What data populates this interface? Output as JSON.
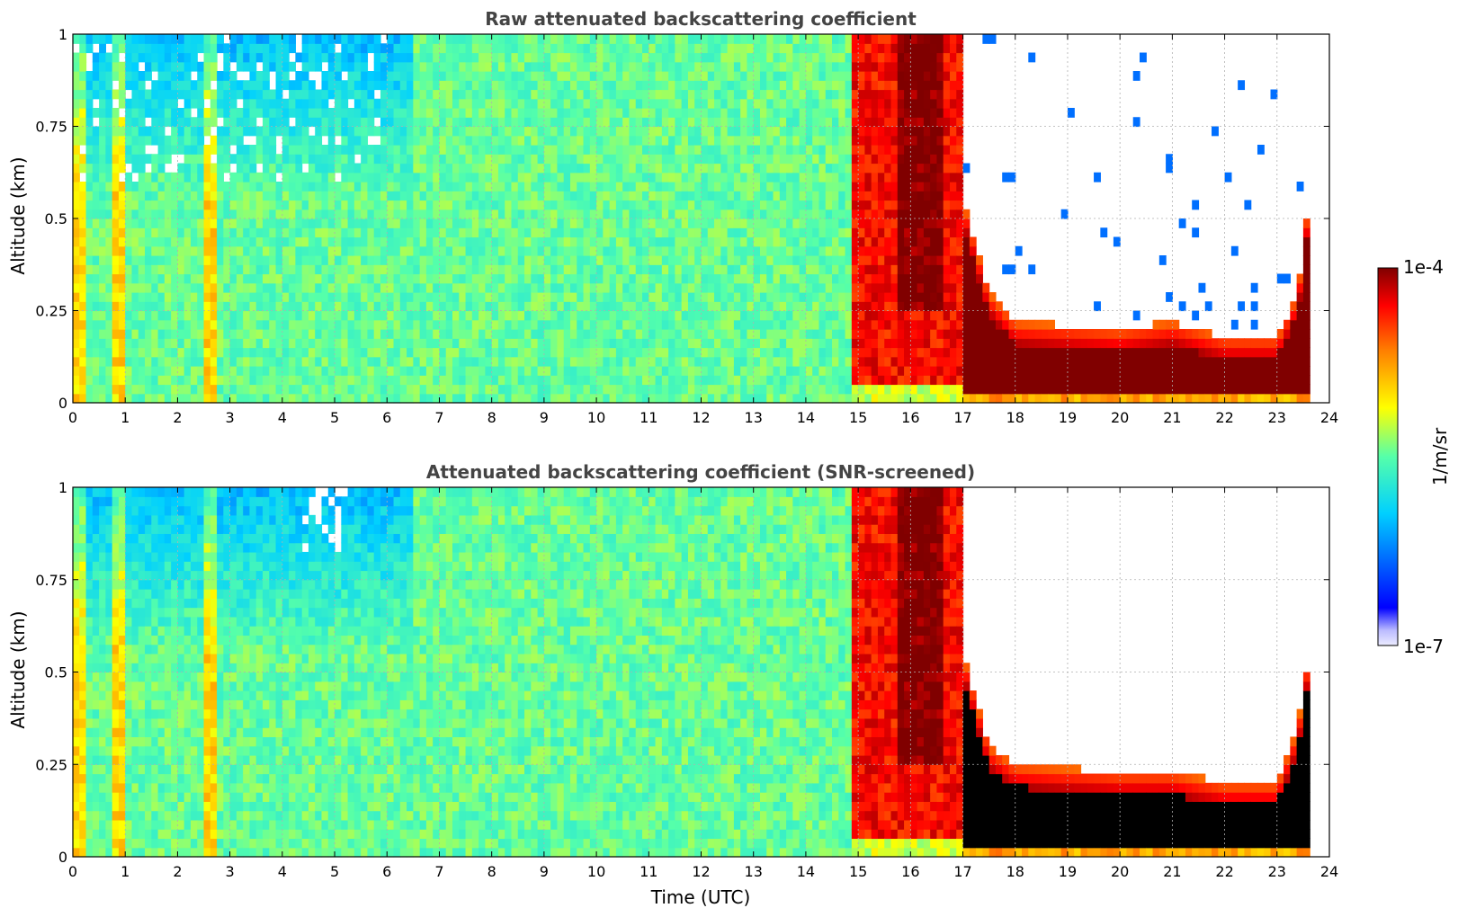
{
  "chart_data": [
    {
      "type": "heatmap",
      "title": "Raw attenuated backscattering coefficient",
      "xlabel": "",
      "ylabel": "Altitude (km)",
      "xlim": [
        0,
        24
      ],
      "ylim": [
        0,
        1
      ],
      "xticks": [
        "0",
        "1",
        "2",
        "3",
        "4",
        "5",
        "6",
        "7",
        "8",
        "9",
        "10",
        "11",
        "12",
        "13",
        "14",
        "15",
        "16",
        "17",
        "18",
        "19",
        "20",
        "21",
        "22",
        "23",
        "24"
      ],
      "yticks": [
        "0",
        "0.25",
        "0.5",
        "0.75",
        "1"
      ],
      "grid": true,
      "screened": false,
      "features": {
        "clear_background_log10": -5.8,
        "fog_start_utc": 14.85,
        "fog_end_utc": 17.0,
        "fog_log10": -4.3,
        "low_cloud_start_utc": 17.0,
        "low_cloud_end_utc": 23.6,
        "low_cloud_top_km": [
          [
            17.0,
            0.55
          ],
          [
            17.5,
            0.3
          ],
          [
            18,
            0.22
          ],
          [
            20,
            0.2
          ],
          [
            21,
            0.22
          ],
          [
            22,
            0.18
          ],
          [
            23,
            0.18
          ],
          [
            23.4,
            0.3
          ],
          [
            23.6,
            0.55
          ]
        ],
        "low_cloud_core_log10": -4.0,
        "no_data_after_utc": 23.65
      }
    },
    {
      "type": "heatmap",
      "title": "Attenuated backscattering coefficient (SNR-screened)",
      "xlabel": "Time (UTC)",
      "ylabel": "Altitude (km)",
      "xlim": [
        0,
        24
      ],
      "ylim": [
        0,
        1
      ],
      "xticks": [
        "0",
        "1",
        "2",
        "3",
        "4",
        "5",
        "6",
        "7",
        "8",
        "9",
        "10",
        "11",
        "12",
        "13",
        "14",
        "15",
        "16",
        "17",
        "18",
        "19",
        "20",
        "21",
        "22",
        "23",
        "24"
      ],
      "yticks": [
        "0",
        "0.25",
        "0.5",
        "0.75",
        "1"
      ],
      "grid": true,
      "screened": true,
      "features": {
        "clear_background_log10": -5.8,
        "fog_start_utc": 14.85,
        "fog_end_utc": 17.0,
        "fog_log10": -4.3,
        "low_cloud_start_utc": 17.0,
        "low_cloud_end_utc": 23.6,
        "low_cloud_top_km": [
          [
            17.0,
            0.55
          ],
          [
            17.5,
            0.3
          ],
          [
            18,
            0.25
          ],
          [
            20,
            0.23
          ],
          [
            21,
            0.23
          ],
          [
            22,
            0.2
          ],
          [
            23,
            0.2
          ],
          [
            23.4,
            0.35
          ],
          [
            23.6,
            0.55
          ]
        ],
        "saturated_color": "#000000",
        "no_data_after_utc": 23.65
      }
    }
  ],
  "colorbar": {
    "label": "1/m/sr",
    "max_label": "1e-4",
    "min_label": "1e-7",
    "min_value": 1e-07,
    "max_value": 0.0001,
    "colormap": "jet"
  }
}
